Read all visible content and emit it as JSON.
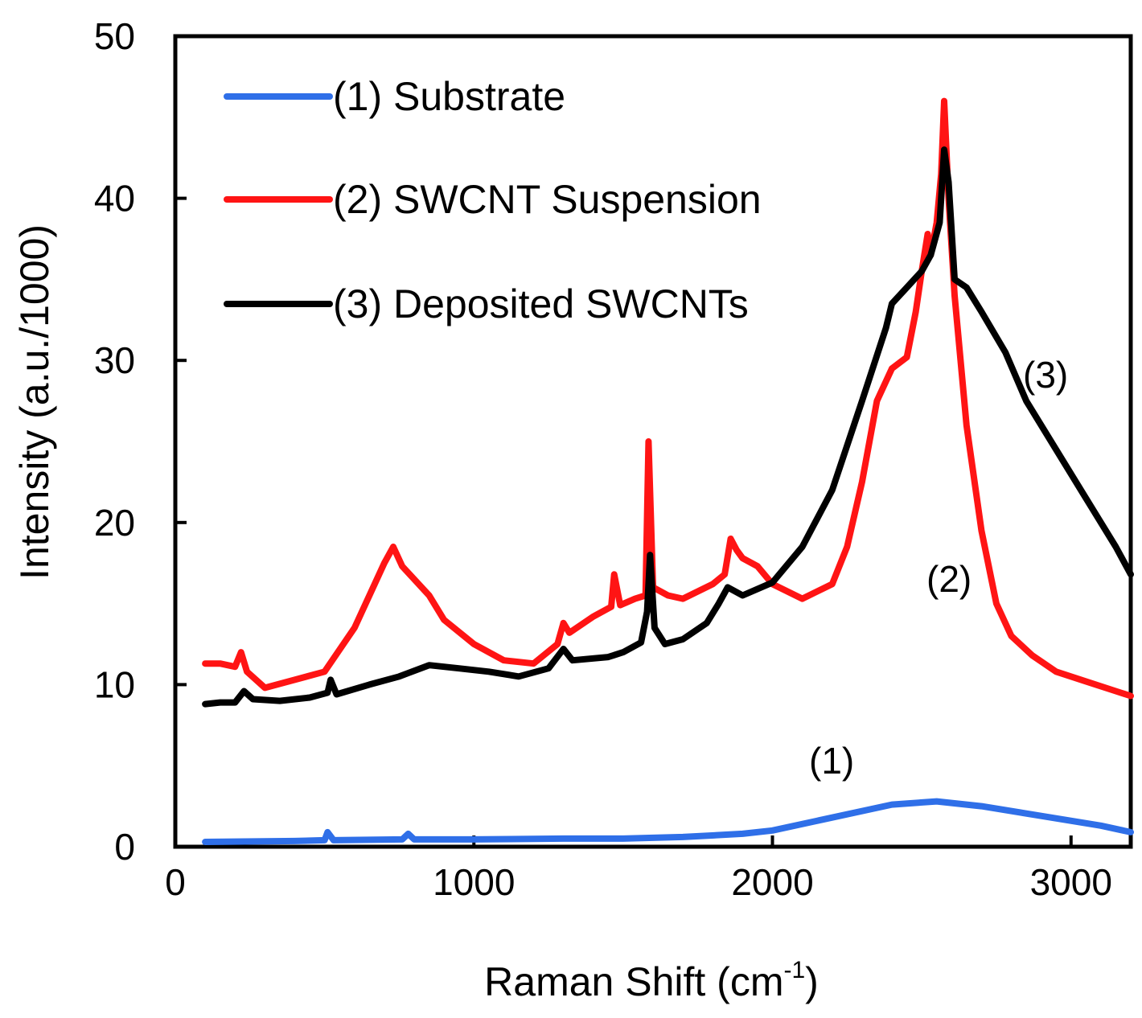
{
  "chart_data": {
    "type": "line",
    "title": "",
    "xlabel": "Raman Shift (cm",
    "xlabel_sup": "-1",
    "xlabel_end": ")",
    "ylabel": "Intensity (a.u./1000)",
    "xlim": [
      0,
      3200
    ],
    "ylim": [
      0,
      50
    ],
    "xticks": [
      0,
      1000,
      2000,
      3000
    ],
    "yticks": [
      0,
      10,
      20,
      30,
      40,
      50
    ],
    "grid": false,
    "legend_position": "top-left",
    "series": [
      {
        "name": "(1) Substrate",
        "annotation": "(1)",
        "color": "#2f6fe8",
        "points": [
          [
            100,
            0.3
          ],
          [
            400,
            0.35
          ],
          [
            500,
            0.4
          ],
          [
            510,
            0.9
          ],
          [
            530,
            0.4
          ],
          [
            760,
            0.45
          ],
          [
            780,
            0.8
          ],
          [
            800,
            0.45
          ],
          [
            1000,
            0.45
          ],
          [
            1300,
            0.5
          ],
          [
            1500,
            0.5
          ],
          [
            1700,
            0.6
          ],
          [
            1900,
            0.8
          ],
          [
            2000,
            1.0
          ],
          [
            2200,
            1.8
          ],
          [
            2400,
            2.6
          ],
          [
            2550,
            2.8
          ],
          [
            2700,
            2.5
          ],
          [
            2900,
            1.9
          ],
          [
            3100,
            1.3
          ],
          [
            3200,
            0.9
          ]
        ]
      },
      {
        "name": "(2) SWCNT Suspension",
        "annotation": "(2)",
        "color": "#ff1414",
        "points": [
          [
            100,
            11.3
          ],
          [
            150,
            11.3
          ],
          [
            200,
            11.1
          ],
          [
            220,
            12.0
          ],
          [
            240,
            10.8
          ],
          [
            300,
            9.8
          ],
          [
            400,
            10.3
          ],
          [
            500,
            10.8
          ],
          [
            600,
            13.5
          ],
          [
            700,
            17.5
          ],
          [
            730,
            18.5
          ],
          [
            760,
            17.3
          ],
          [
            850,
            15.5
          ],
          [
            900,
            14.0
          ],
          [
            1000,
            12.5
          ],
          [
            1100,
            11.5
          ],
          [
            1200,
            11.3
          ],
          [
            1280,
            12.5
          ],
          [
            1300,
            13.8
          ],
          [
            1320,
            13.2
          ],
          [
            1400,
            14.2
          ],
          [
            1460,
            14.8
          ],
          [
            1470,
            16.8
          ],
          [
            1490,
            14.9
          ],
          [
            1540,
            15.3
          ],
          [
            1575,
            15.5
          ],
          [
            1585,
            25.0
          ],
          [
            1600,
            16.0
          ],
          [
            1650,
            15.5
          ],
          [
            1700,
            15.3
          ],
          [
            1800,
            16.2
          ],
          [
            1840,
            16.8
          ],
          [
            1860,
            19.0
          ],
          [
            1880,
            18.3
          ],
          [
            1900,
            17.8
          ],
          [
            1950,
            17.3
          ],
          [
            2000,
            16.2
          ],
          [
            2100,
            15.3
          ],
          [
            2200,
            16.2
          ],
          [
            2250,
            18.5
          ],
          [
            2300,
            22.5
          ],
          [
            2350,
            27.5
          ],
          [
            2400,
            29.5
          ],
          [
            2450,
            30.2
          ],
          [
            2480,
            33.0
          ],
          [
            2500,
            35.5
          ],
          [
            2520,
            37.8
          ],
          [
            2530,
            36.5
          ],
          [
            2550,
            38.5
          ],
          [
            2565,
            41.5
          ],
          [
            2575,
            46.0
          ],
          [
            2590,
            40.0
          ],
          [
            2610,
            34.0
          ],
          [
            2650,
            26.0
          ],
          [
            2700,
            19.5
          ],
          [
            2750,
            15.0
          ],
          [
            2800,
            13.0
          ],
          [
            2870,
            11.8
          ],
          [
            2950,
            10.8
          ],
          [
            3050,
            10.2
          ],
          [
            3150,
            9.6
          ],
          [
            3200,
            9.3
          ]
        ]
      },
      {
        "name": "(3) Deposited SWCNTs",
        "annotation": "(3)",
        "color": "#000000",
        "points": [
          [
            100,
            8.8
          ],
          [
            150,
            8.9
          ],
          [
            200,
            8.9
          ],
          [
            230,
            9.6
          ],
          [
            260,
            9.1
          ],
          [
            350,
            9.0
          ],
          [
            450,
            9.2
          ],
          [
            510,
            9.5
          ],
          [
            520,
            10.3
          ],
          [
            540,
            9.4
          ],
          [
            650,
            10.0
          ],
          [
            750,
            10.5
          ],
          [
            850,
            11.2
          ],
          [
            950,
            11.0
          ],
          [
            1050,
            10.8
          ],
          [
            1150,
            10.5
          ],
          [
            1250,
            11.0
          ],
          [
            1300,
            12.2
          ],
          [
            1330,
            11.5
          ],
          [
            1450,
            11.7
          ],
          [
            1500,
            12.0
          ],
          [
            1560,
            12.6
          ],
          [
            1580,
            14.5
          ],
          [
            1590,
            18.0
          ],
          [
            1605,
            13.5
          ],
          [
            1640,
            12.5
          ],
          [
            1700,
            12.8
          ],
          [
            1780,
            13.8
          ],
          [
            1820,
            15.0
          ],
          [
            1850,
            16.0
          ],
          [
            1900,
            15.5
          ],
          [
            2000,
            16.3
          ],
          [
            2100,
            18.5
          ],
          [
            2200,
            22.0
          ],
          [
            2300,
            27.5
          ],
          [
            2380,
            32.0
          ],
          [
            2400,
            33.5
          ],
          [
            2450,
            34.5
          ],
          [
            2500,
            35.5
          ],
          [
            2530,
            36.5
          ],
          [
            2560,
            38.5
          ],
          [
            2575,
            43.0
          ],
          [
            2590,
            41.0
          ],
          [
            2610,
            35.0
          ],
          [
            2650,
            34.5
          ],
          [
            2700,
            33.0
          ],
          [
            2780,
            30.5
          ],
          [
            2850,
            27.5
          ],
          [
            2950,
            24.5
          ],
          [
            3050,
            21.5
          ],
          [
            3150,
            18.5
          ],
          [
            3200,
            16.8
          ]
        ]
      }
    ]
  }
}
